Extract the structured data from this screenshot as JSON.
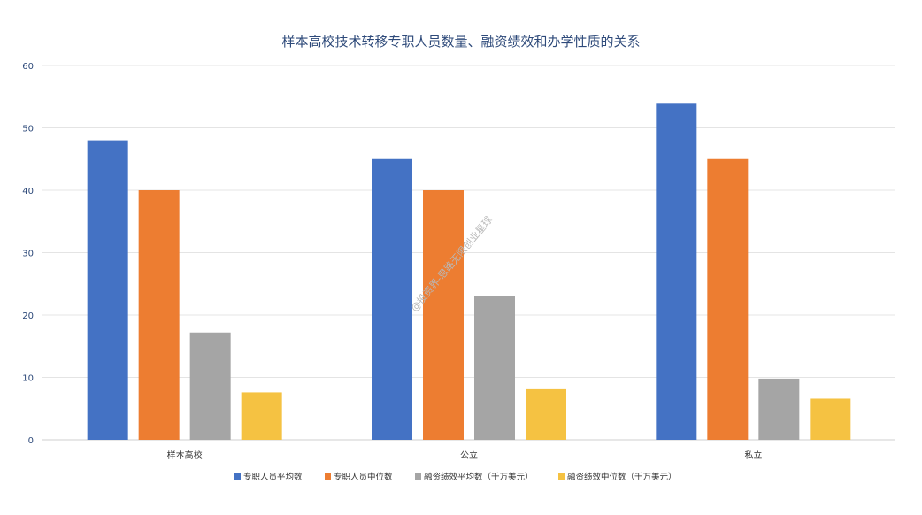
{
  "chart_data": {
    "type": "bar",
    "title": "样本高校技术转移专职人员数量、融资绩效和办学性质的关系",
    "categories": [
      "样本高校",
      "公立",
      "私立"
    ],
    "series": [
      {
        "name": "专职人员平均数",
        "color": "#4472c4",
        "values": [
          48,
          45,
          54
        ]
      },
      {
        "name": "专职人员中位数",
        "color": "#ed7d31",
        "values": [
          40,
          40,
          45
        ]
      },
      {
        "name": "融资绩效平均数（千万美元）",
        "color": "#a5a5a5",
        "values": [
          17.2,
          23,
          9.8
        ]
      },
      {
        "name": "融资绩效中位数（千万美元）",
        "color": "#f5c242",
        "values": [
          7.6,
          8.1,
          6.6
        ]
      }
    ],
    "ylim": [
      0,
      60
    ],
    "yticks": [
      0,
      10,
      20,
      30,
      40,
      50,
      60
    ],
    "xlabel": "",
    "ylabel": "",
    "grid": true,
    "legend_position": "bottom"
  },
  "watermark": "@投资界-思路无限创业星球"
}
